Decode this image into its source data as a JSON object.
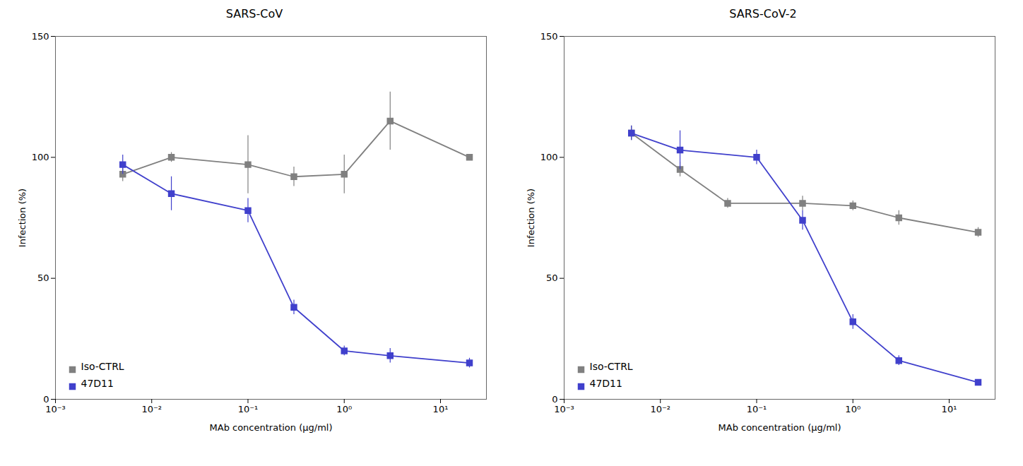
{
  "chart_data": [
    {
      "type": "line",
      "title": "SARS-CoV",
      "xlabel": "MAb concentration (μg/ml)",
      "ylabel": "Infection (%)",
      "log": "x",
      "legend": "lower left",
      "xlim": [
        0.001,
        30
      ],
      "xticks": [
        {
          "value": 0.001,
          "label": "10⁻³"
        },
        {
          "value": 0.01,
          "label": "10⁻²"
        },
        {
          "value": 0.1,
          "label": "10⁻¹"
        },
        {
          "value": 1,
          "label": "10⁰"
        },
        {
          "value": 10,
          "label": "10¹"
        }
      ],
      "ylim": [
        0,
        150
      ],
      "yticks": [
        0,
        50,
        100,
        150
      ],
      "series": [
        {
          "name": "Iso-CTRL",
          "color": "#808080",
          "marker": "square",
          "x": [
            0.005,
            0.016,
            0.1,
            0.3,
            1.0,
            3.0,
            20.0
          ],
          "values": [
            93,
            100,
            97,
            92,
            93,
            115,
            100
          ],
          "errors": [
            3,
            2,
            12,
            4,
            8,
            12,
            0
          ]
        },
        {
          "name": "47D11",
          "color": "#4040cc",
          "marker": "square",
          "x": [
            0.005,
            0.016,
            0.1,
            0.3,
            1.0,
            3.0,
            20.0
          ],
          "values": [
            97,
            85,
            78,
            38,
            20,
            18,
            15
          ],
          "errors": [
            4,
            7,
            5,
            3,
            2,
            3,
            2
          ]
        }
      ]
    },
    {
      "type": "line",
      "title": "SARS-CoV-2",
      "xlabel": "MAb concentration (μg/ml)",
      "ylabel": "Infection (%)",
      "log": "x",
      "legend": "lower left",
      "xlim": [
        0.001,
        30
      ],
      "xticks": [
        {
          "value": 0.001,
          "label": "10⁻³"
        },
        {
          "value": 0.01,
          "label": "10⁻²"
        },
        {
          "value": 0.1,
          "label": "10⁻¹"
        },
        {
          "value": 1,
          "label": "10⁰"
        },
        {
          "value": 10,
          "label": "10¹"
        }
      ],
      "ylim": [
        0,
        150
      ],
      "yticks": [
        0,
        50,
        100,
        150
      ],
      "series": [
        {
          "name": "Iso-CTRL",
          "color": "#808080",
          "marker": "square",
          "x": [
            0.005,
            0.016,
            0.05,
            0.3,
            1.0,
            3.0,
            20.0
          ],
          "values": [
            110,
            95,
            81,
            81,
            80,
            75,
            69
          ],
          "errors": [
            3,
            3,
            2,
            3,
            2,
            3,
            2
          ]
        },
        {
          "name": "47D11",
          "color": "#4040cc",
          "marker": "square",
          "x": [
            0.005,
            0.016,
            0.1,
            0.3,
            1.0,
            3.0,
            20.0
          ],
          "values": [
            110,
            103,
            100,
            74,
            32,
            16,
            7
          ],
          "errors": [
            3,
            8,
            3,
            4,
            3,
            2,
            1
          ]
        }
      ]
    }
  ]
}
